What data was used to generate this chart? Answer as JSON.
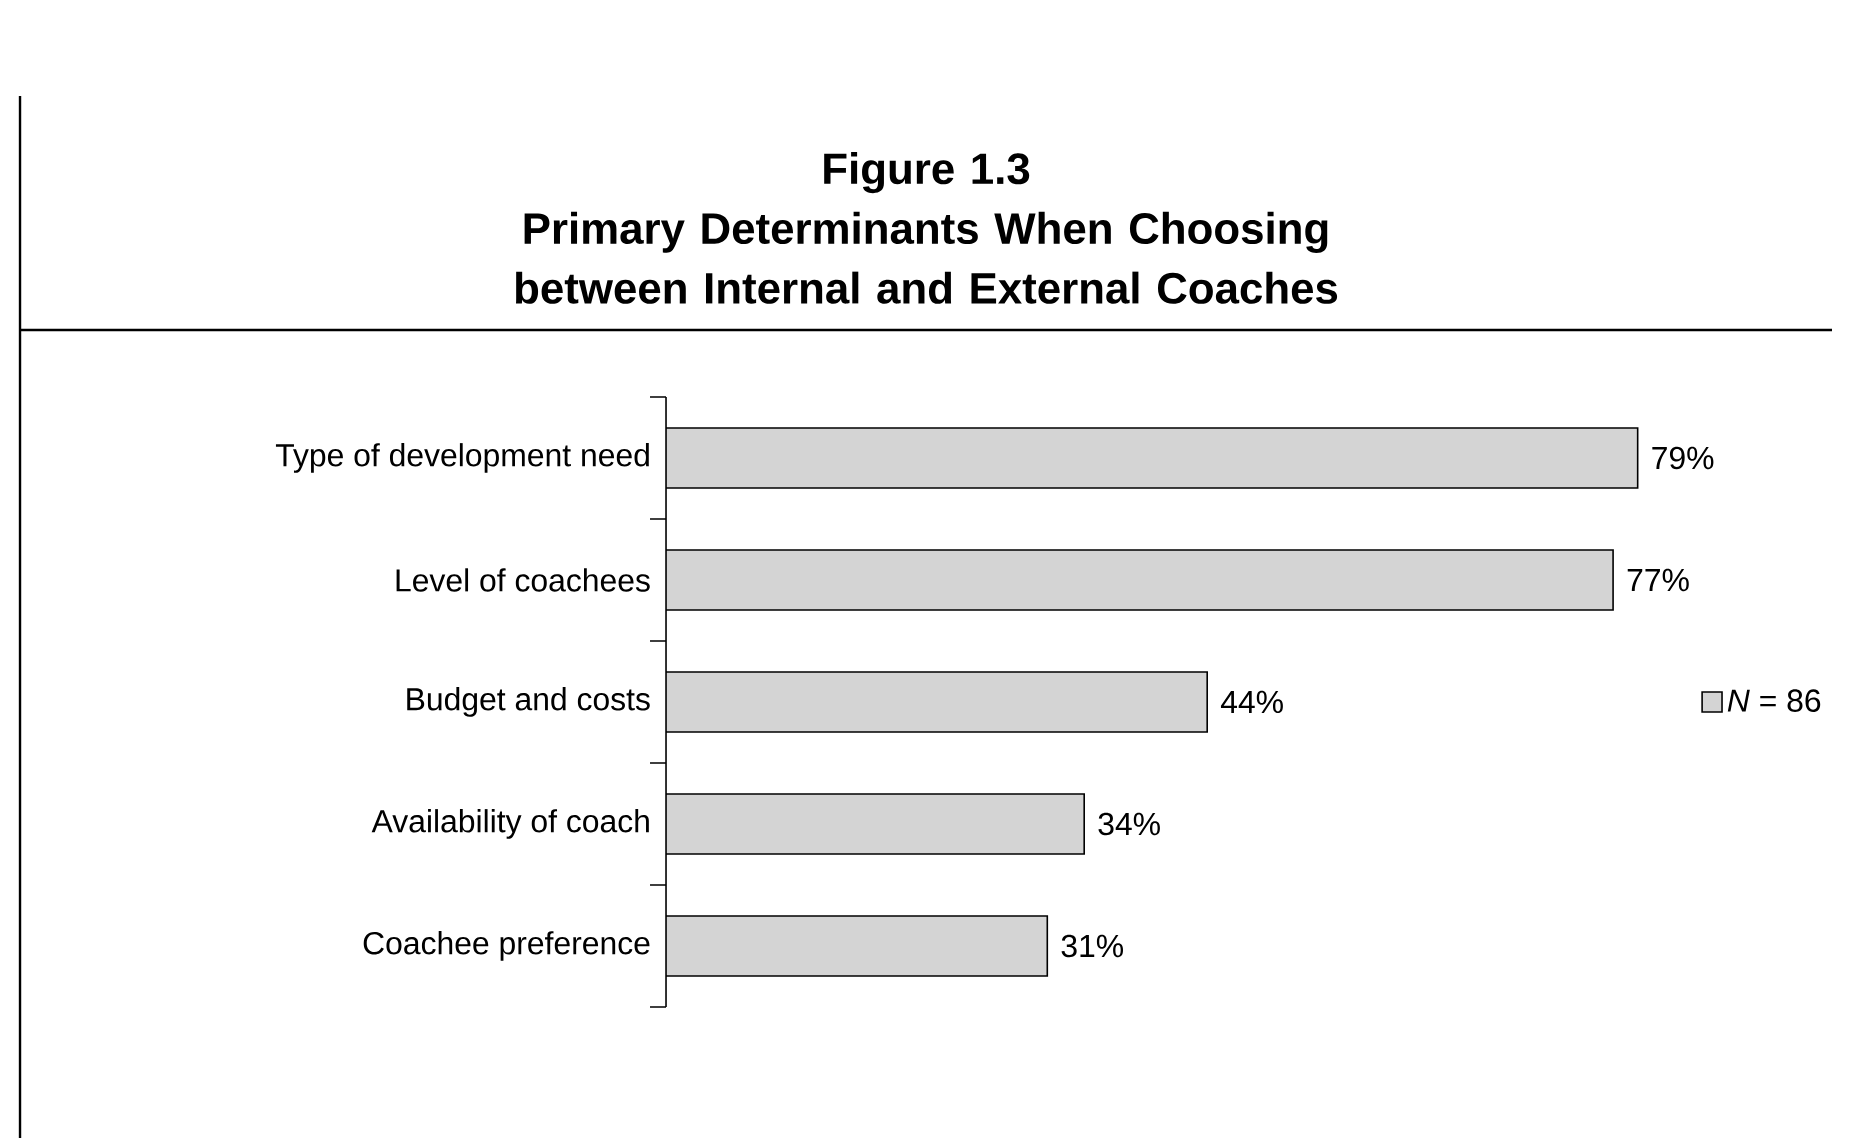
{
  "chart_data": {
    "type": "bar",
    "orientation": "horizontal",
    "title": "Figure 1.3",
    "subtitle": "Primary Determinants When Choosing between Internal and External Coaches",
    "categories": [
      "Type of development need",
      "Level of coachees",
      "Budget and costs",
      "Availability of coach",
      "Coachee preference"
    ],
    "series": [
      {
        "name": "*N* = 86",
        "color": "#d4d4d4",
        "values": [
          79,
          77,
          44,
          34,
          31
        ],
        "value_labels": [
          "79%",
          "77%",
          "44%",
          "34%",
          "31%"
        ]
      }
    ],
    "tick_labels": "y",
    "grid": false,
    "legend": "right"
  }
}
